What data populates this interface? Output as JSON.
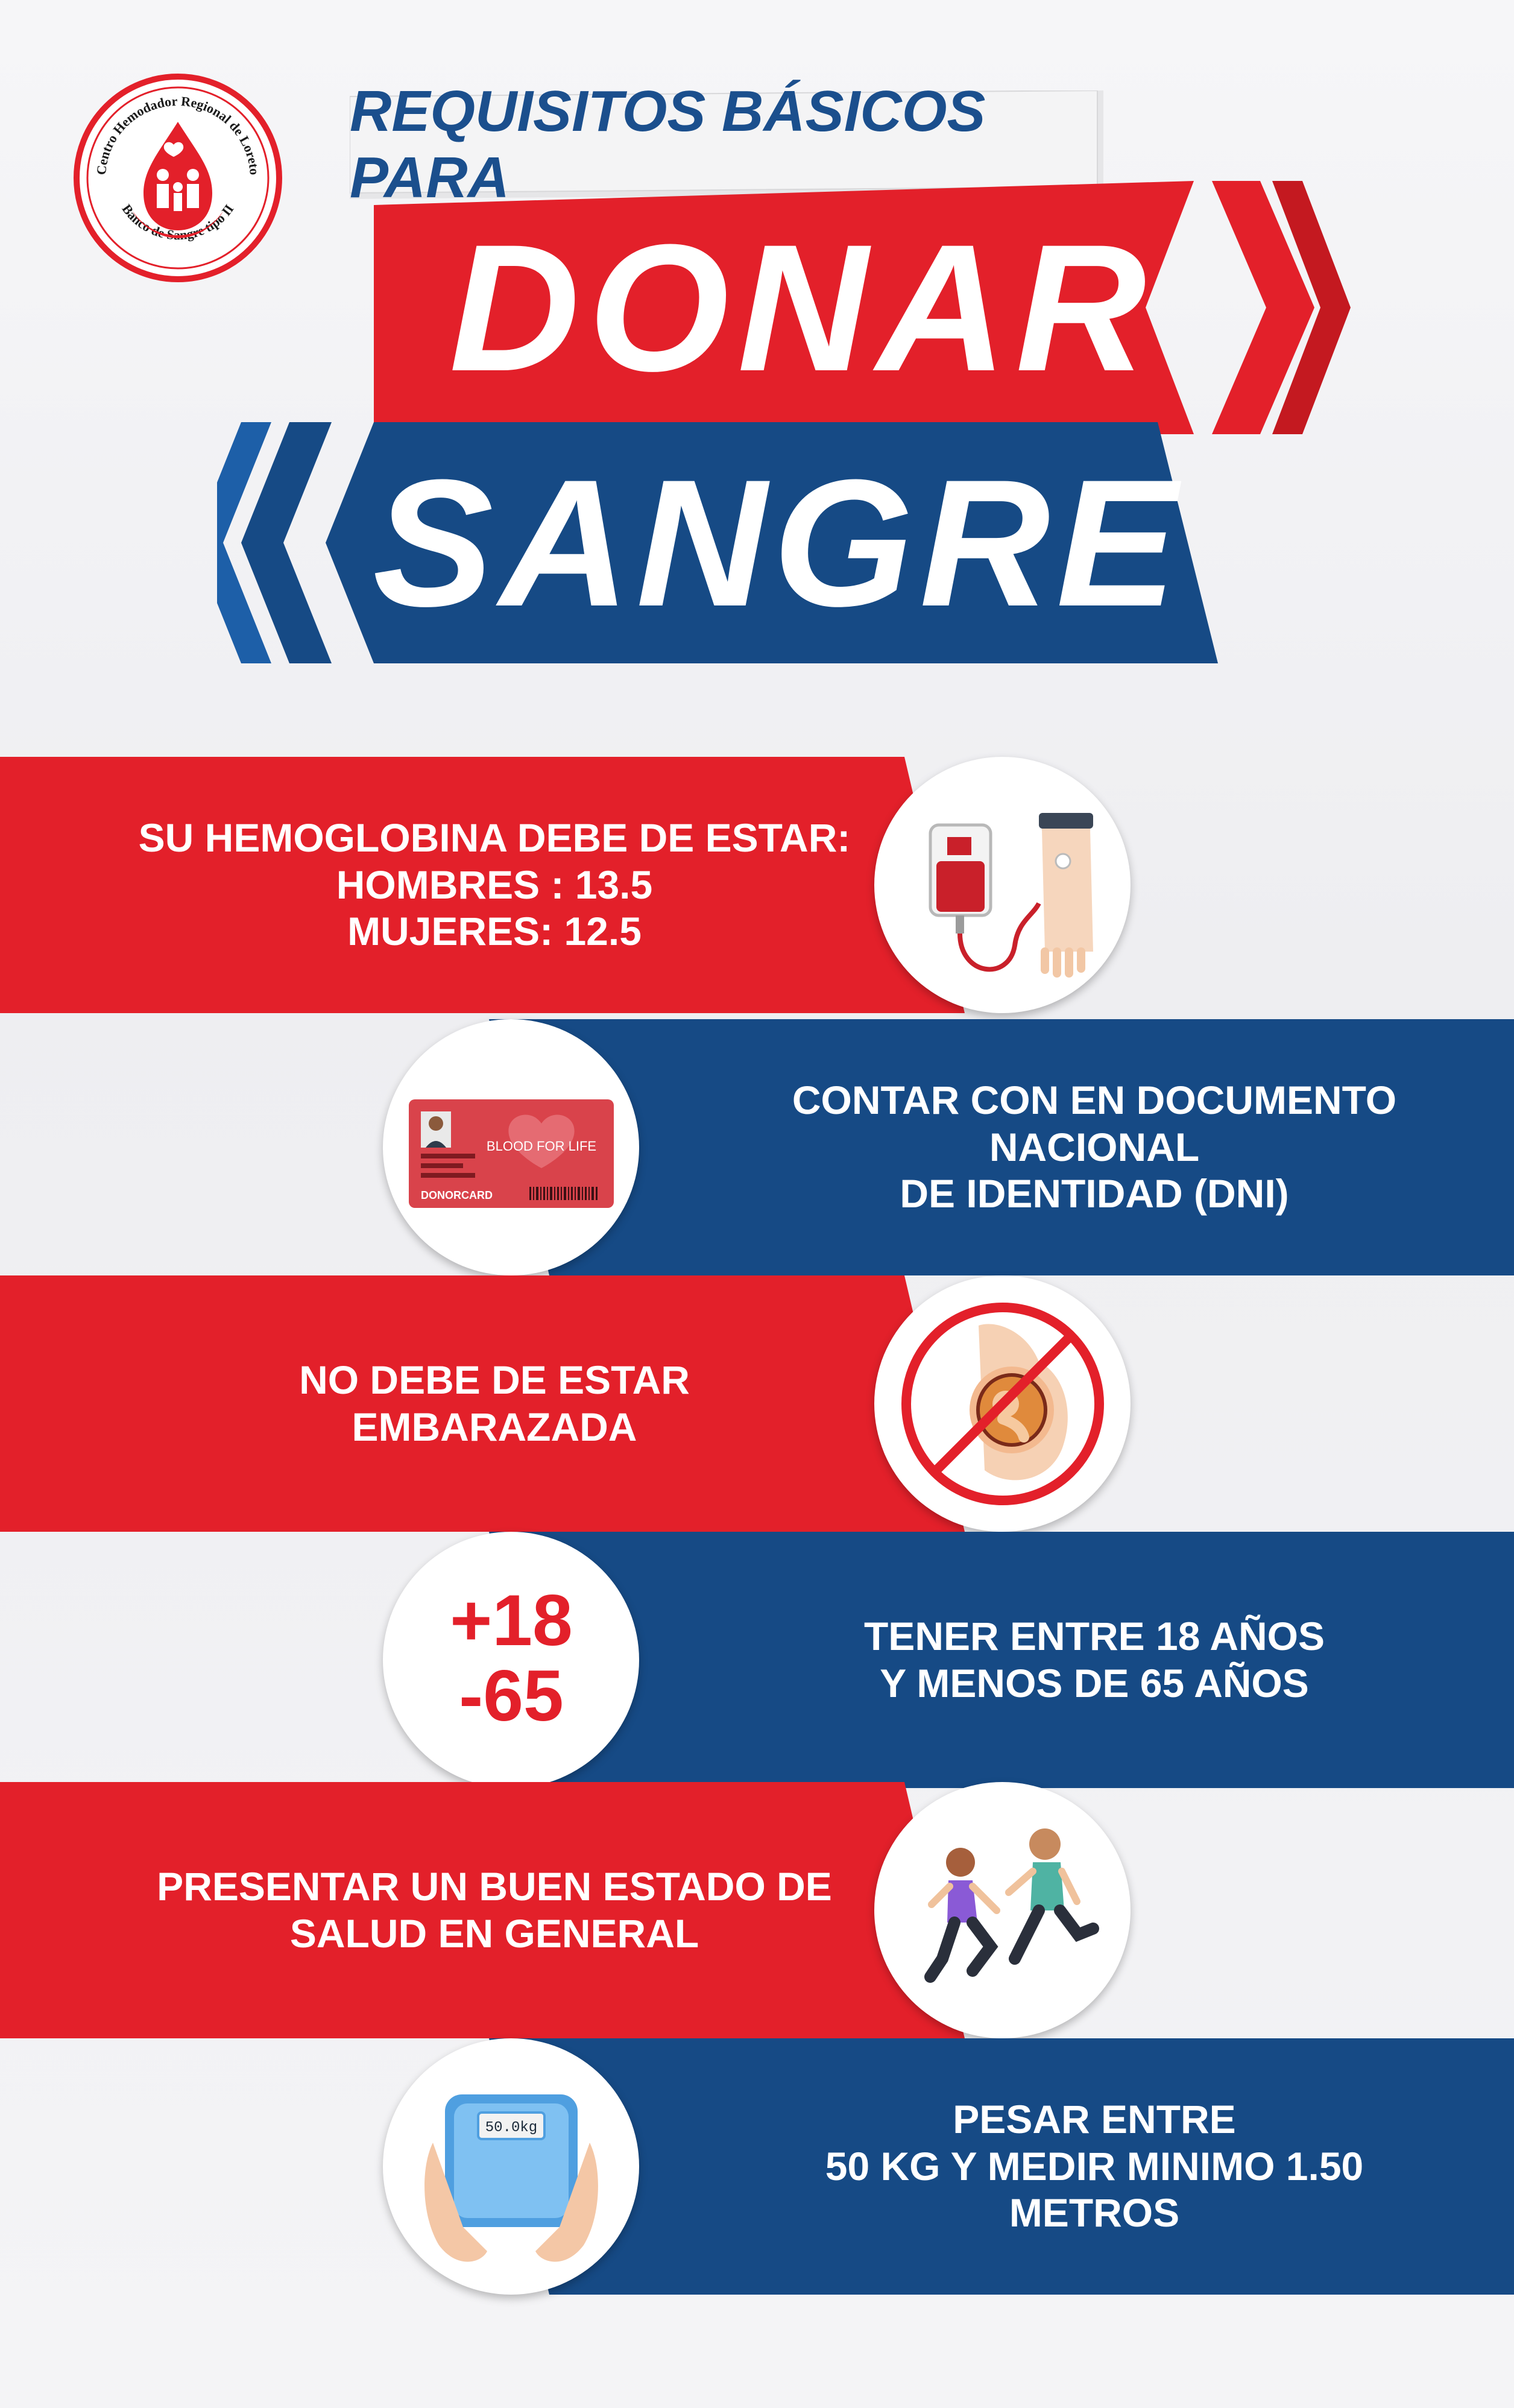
{
  "logo": {
    "ring_top": "Centro Hemodador Regional de Loreto",
    "ring_bottom": "Banco de Sangre tipo II"
  },
  "header": {
    "subtitle": "REQUISITOS BÁSICOS PARA",
    "title_line1": "DONAR",
    "title_line2": "SANGRE"
  },
  "requirements": [
    {
      "lines": [
        "SU HEMOGLOBINA DEBE DE ESTAR:",
        "HOMBRES :  13.5",
        "MUJERES: 12.5"
      ],
      "icon": "blood-bag-transfusion-icon"
    },
    {
      "lines": [
        "CONTAR CON EN DOCUMENTO NACIONAL",
        "DE IDENTIDAD (DNI)"
      ],
      "icon": "donor-card-icon",
      "card": {
        "heading": "BLOOD FOR LIFE",
        "footer": "DONORCARD"
      }
    },
    {
      "lines": [
        "NO DEBE DE ESTAR",
        "EMBARAZADA"
      ],
      "icon": "no-pregnancy-icon"
    },
    {
      "lines": [
        "TENER ENTRE 18 AÑOS",
        "Y MENOS DE 65 AÑOS"
      ],
      "icon": "age-range-icon",
      "age": {
        "min": "+18",
        "max": "-65"
      }
    },
    {
      "lines": [
        "PRESENTAR UN BUEN ESTADO DE",
        "SALUD EN GENERAL"
      ],
      "icon": "running-people-icon"
    },
    {
      "lines": [
        "PESAR ENTRE",
        "50 KG Y MEDIR MINIMO 1.50 METROS"
      ],
      "icon": "weight-scale-icon",
      "scale": {
        "display": "50.0kg"
      }
    }
  ],
  "colors": {
    "red": "#e3202a",
    "blue": "#164a85",
    "background": "#f2f2f4"
  }
}
